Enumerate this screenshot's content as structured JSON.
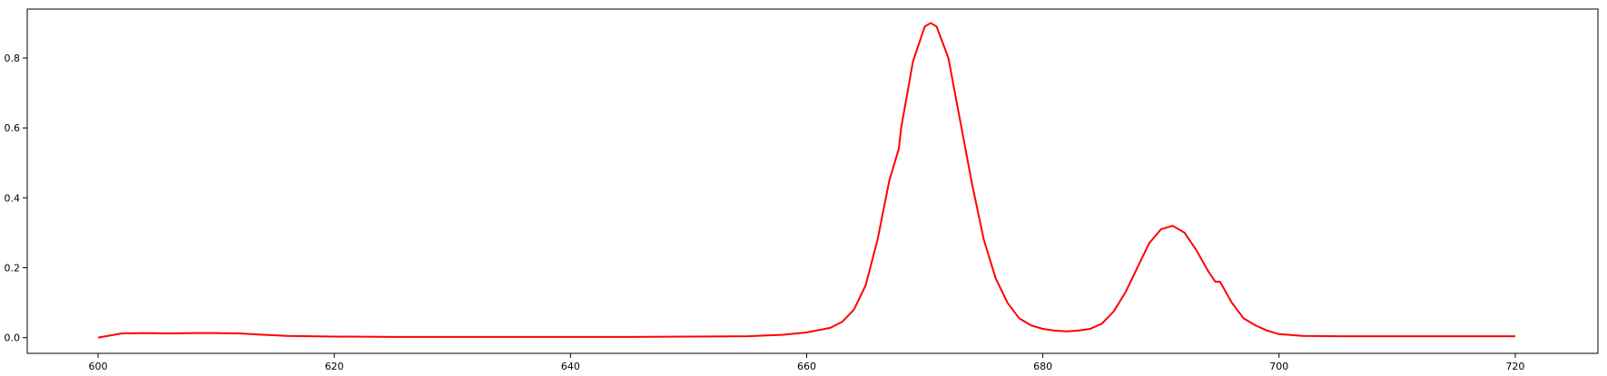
{
  "chart_data": {
    "type": "line",
    "title": "",
    "xlabel": "",
    "ylabel": "",
    "xlim": [
      594,
      727
    ],
    "ylim": [
      -0.045,
      0.94
    ],
    "xticks": [
      600,
      620,
      640,
      660,
      680,
      700,
      720
    ],
    "xtick_labels": [
      "600",
      "620",
      "640",
      "660",
      "680",
      "700",
      "720"
    ],
    "yticks": [
      0.0,
      0.2,
      0.4,
      0.6,
      0.8
    ],
    "ytick_labels": [
      "0.0",
      "0.2",
      "0.4",
      "0.6",
      "0.8"
    ],
    "grid": false,
    "legend": null,
    "series": [
      {
        "color": "#ff0000",
        "x": [
          600,
          602,
          604,
          606,
          608,
          610,
          612,
          614,
          616,
          618,
          620,
          625,
          630,
          635,
          640,
          645,
          650,
          655,
          658,
          660,
          662,
          663,
          664,
          665,
          666,
          667,
          667.8,
          668,
          669,
          670,
          670.5,
          671,
          672,
          673,
          674,
          675,
          676,
          677,
          678,
          679,
          680,
          681,
          682,
          683,
          684,
          685,
          686,
          687,
          688,
          689,
          690,
          691,
          692,
          693,
          694,
          694.6,
          695,
          696,
          697,
          698,
          699,
          700,
          702,
          705,
          710,
          715,
          720
        ],
        "y": [
          0.0,
          0.012,
          0.013,
          0.012,
          0.013,
          0.013,
          0.012,
          0.008,
          0.005,
          0.004,
          0.003,
          0.002,
          0.002,
          0.002,
          0.002,
          0.002,
          0.003,
          0.004,
          0.008,
          0.015,
          0.028,
          0.045,
          0.08,
          0.15,
          0.28,
          0.45,
          0.54,
          0.6,
          0.79,
          0.89,
          0.9,
          0.89,
          0.8,
          0.62,
          0.44,
          0.28,
          0.17,
          0.1,
          0.055,
          0.035,
          0.025,
          0.02,
          0.018,
          0.02,
          0.025,
          0.04,
          0.075,
          0.13,
          0.2,
          0.27,
          0.31,
          0.32,
          0.3,
          0.25,
          0.19,
          0.16,
          0.16,
          0.1,
          0.055,
          0.035,
          0.02,
          0.01,
          0.005,
          0.004,
          0.004,
          0.004,
          0.004
        ]
      }
    ]
  }
}
